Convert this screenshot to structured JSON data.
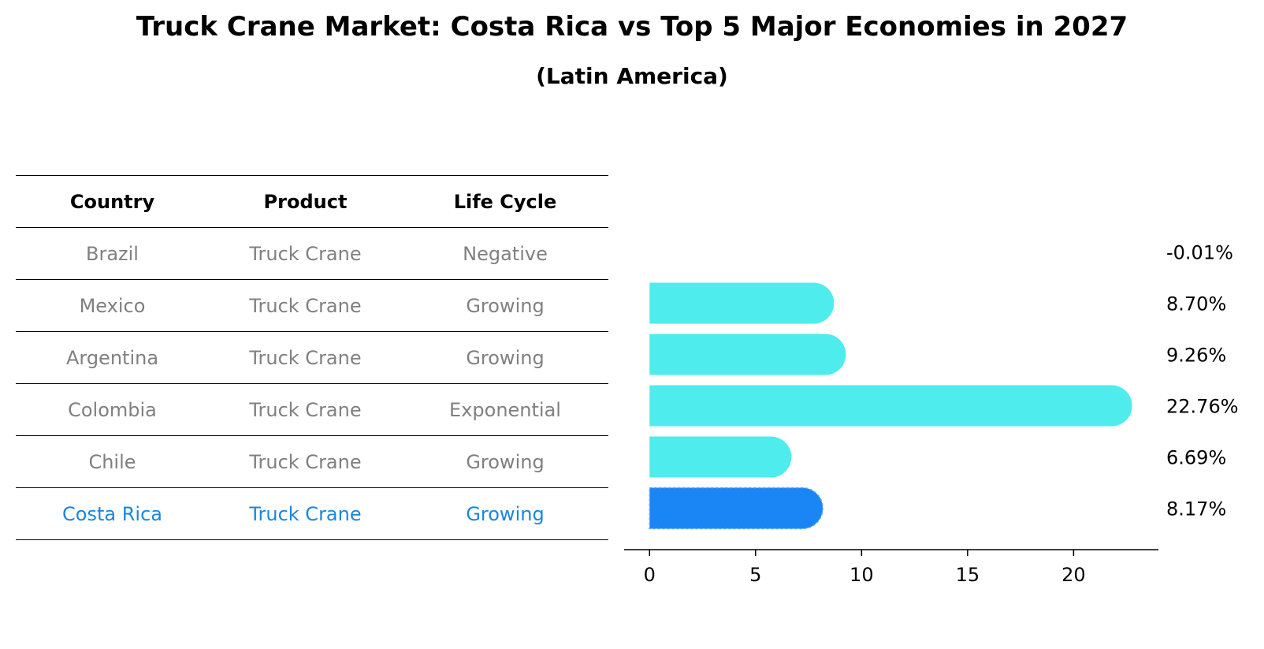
{
  "title": "Truck Crane Market: Costa Rica vs Top 5 Major Economies in 2027",
  "subtitle": "(Latin America)",
  "table": {
    "headers": [
      "Country",
      "Product",
      "Life Cycle"
    ],
    "rows": [
      {
        "country": "Brazil",
        "product": "Truck Crane",
        "life_cycle": "Negative"
      },
      {
        "country": "Mexico",
        "product": "Truck Crane",
        "life_cycle": "Growing"
      },
      {
        "country": "Argentina",
        "product": "Truck Crane",
        "life_cycle": "Growing"
      },
      {
        "country": "Colombia",
        "product": "Truck Crane",
        "life_cycle": "Exponential"
      },
      {
        "country": "Chile",
        "product": "Truck Crane",
        "life_cycle": "Growing"
      },
      {
        "country": "Costa Rica",
        "product": "Truck Crane",
        "life_cycle": "Growing"
      }
    ]
  },
  "chart_data": {
    "type": "bar",
    "orientation": "horizontal",
    "categories": [
      "Brazil",
      "Mexico",
      "Argentina",
      "Colombia",
      "Chile",
      "Costa Rica"
    ],
    "values": [
      -0.01,
      8.7,
      9.26,
      22.76,
      6.69,
      8.17
    ],
    "value_labels": [
      "-0.01%",
      "8.70%",
      "9.26%",
      "22.76%",
      "6.69%",
      "8.17%"
    ],
    "highlight": "Costa Rica",
    "xlim": [
      -1.2,
      24.0
    ],
    "xticks": [
      0,
      5,
      10,
      15,
      20
    ],
    "xlabel": "",
    "ylabel": "",
    "grid": false,
    "colors": {
      "default": "#4eecec",
      "highlight": "#1a86f5",
      "muted_text": "#808080",
      "highlight_text": "#1a86e0"
    }
  }
}
